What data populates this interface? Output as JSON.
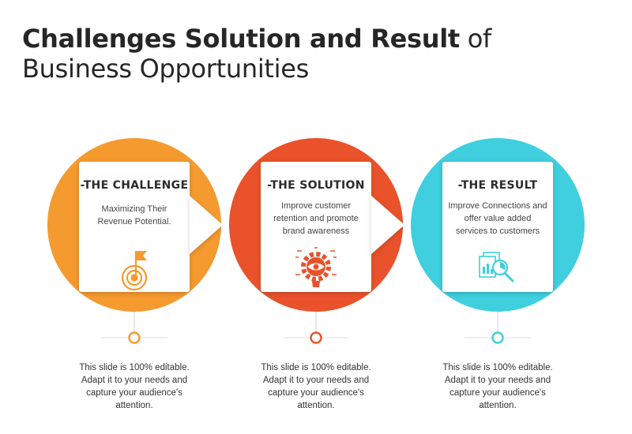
{
  "title": {
    "bold": "Challenges Solution and Result",
    "light": " of",
    "line2": "Business Opportunities"
  },
  "steps": [
    {
      "heading": "-THE CHALLENGE",
      "description": "Maximizing Their Revenue Potential.",
      "icon": "flag-target-icon",
      "color": "#F59A2E",
      "footnote": "This slide is 100% editable. Adapt it to your needs and capture your audience's attention."
    },
    {
      "heading": "-THE SOLUTION",
      "description": "Improve customer retention and promote brand awareness",
      "icon": "gear-eye-icon",
      "color": "#E9522B",
      "footnote": "This slide is 100% editable. Adapt it to your needs and capture your audience's attention."
    },
    {
      "heading": "-THE RESULT",
      "description": "Improve Connections and offer value added services to customers",
      "icon": "report-magnifier-icon",
      "color": "#3FCFDF",
      "footnote": "This slide is 100% editable. Adapt it to your needs and capture your audience's attention."
    }
  ]
}
